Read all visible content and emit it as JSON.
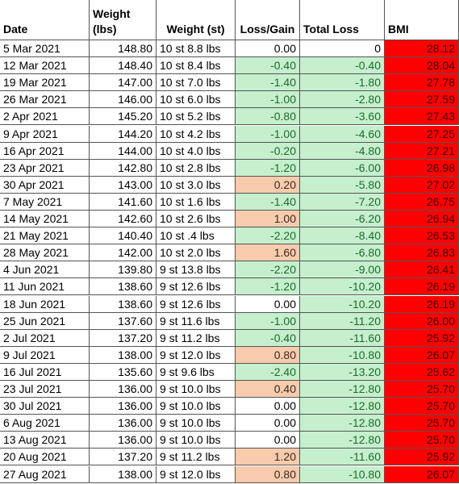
{
  "table": {
    "header": [
      "Date",
      "Weight\n(lbs)",
      "Weight (st)",
      "Loss/Gain",
      "Total Loss",
      "BMI"
    ],
    "rows": [
      [
        "5 Mar 2021",
        "148.80",
        "10 st 8.8 lbs",
        "0.00",
        "0",
        "28.12"
      ],
      [
        "12 Mar 2021",
        "148.40",
        "10 st 8.4 lbs",
        "-0.40",
        "-0.40",
        "28.04"
      ],
      [
        "19 Mar 2021",
        "147.00",
        "10 st 7.0 lbs",
        "-1.40",
        "-1.80",
        "27.78"
      ],
      [
        "26 Mar 2021",
        "146.00",
        "10 st 6.0 lbs",
        "-1.00",
        "-2.80",
        "27.59"
      ],
      [
        "2 Apr 2021",
        "145.20",
        "10 st 5.2 lbs",
        "-0.80",
        "-3.60",
        "27.43"
      ],
      [
        "9 Apr 2021",
        "144.20",
        "10 st 4.2 lbs",
        "-1.00",
        "-4.60",
        "27.25"
      ],
      [
        "16 Apr 2021",
        "144.00",
        "10 st 4.0 lbs",
        "-0.20",
        "-4.80",
        "27.21"
      ],
      [
        "23 Apr 2021",
        "142.80",
        "10 st 2.8 lbs",
        "-1.20",
        "-6.00",
        "26.98"
      ],
      [
        "30 Apr 2021",
        "143.00",
        "10 st 3.0 lbs",
        "0.20",
        "-5.80",
        "27.02"
      ],
      [
        "7 May 2021",
        "141.60",
        "10 st 1.6 lbs",
        "-1.40",
        "-7.20",
        "26.75"
      ],
      [
        "14 May 2021",
        "142.60",
        "10 st 2.6 lbs",
        "1.00",
        "-6.20",
        "26.94"
      ],
      [
        "21 May 2021",
        "140.40",
        "10 st .4 lbs",
        "-2.20",
        "-8.40",
        "26.53"
      ],
      [
        "28 May 2021",
        "142.00",
        "10 st 2.0 lbs",
        "1.60",
        "-6.80",
        "26.83"
      ],
      [
        "4 Jun 2021",
        "139.80",
        "9 st 13.8 lbs",
        "-2.20",
        "-9.00",
        "26.41"
      ],
      [
        "11 Jun 2021",
        "138.60",
        "9 st 12.6 lbs",
        "-1.20",
        "-10.20",
        "26.19"
      ],
      [
        "18 Jun 2021",
        "138.60",
        "9 st 12.6 lbs",
        "0.00",
        "-10.20",
        "26.19"
      ],
      [
        "25 Jun 2021",
        "137.60",
        "9 st 11.6 lbs",
        "-1.00",
        "-11.20",
        "26.00"
      ],
      [
        "2 Jul 2021",
        "137.20",
        "9 st 11.2 lbs",
        "-0.40",
        "-11.60",
        "25.92"
      ],
      [
        "9 Jul 2021",
        "138.00",
        "9 st 12.0 lbs",
        "0.80",
        "-10.80",
        "26.07"
      ],
      [
        "16 Jul 2021",
        "135.60",
        "9 st 9.6 lbs",
        "-2.40",
        "-13.20",
        "25.62"
      ],
      [
        "23 Jul 2021",
        "136.00",
        "9 st 10.0 lbs",
        "0.40",
        "-12.80",
        "25.70"
      ],
      [
        "30 Jul 2021",
        "136.00",
        "9 st 10.0 lbs",
        "0.00",
        "-12.80",
        "25.70"
      ],
      [
        "6 Aug 2021",
        "136.00",
        "9 st 10.0 lbs",
        "0.00",
        "-12.80",
        "25.70"
      ],
      [
        "13 Aug 2021",
        "136.00",
        "9 st 10.0 lbs",
        "0.00",
        "-12.80",
        "25.70"
      ],
      [
        "20 Aug 2021",
        "137.20",
        "9 st 11.2 lbs",
        "1.20",
        "-11.60",
        "25.92"
      ],
      [
        "27 Aug 2021",
        "138.00",
        "9 st 12.0 lbs",
        "0.80",
        "-10.80",
        "26.07"
      ]
    ]
  }
}
